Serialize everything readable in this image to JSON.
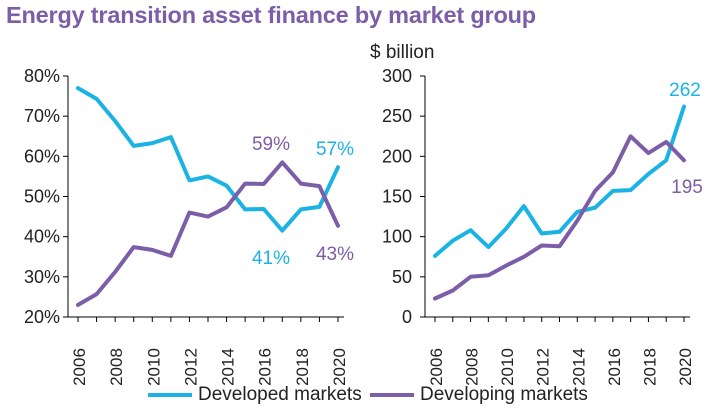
{
  "title": "Energy transition asset finance by market group",
  "colors": {
    "developed": "#1ab3e4",
    "developing": "#7b5ea7",
    "title": "#7b5ea7",
    "axis": "#000000",
    "text": "#222222"
  },
  "legend": [
    {
      "name": "Developed markets",
      "color": "#1ab3e4"
    },
    {
      "name": "Developing markets",
      "color": "#7b5ea7"
    }
  ],
  "chart_data": [
    {
      "type": "line",
      "title": "",
      "xlabel": "",
      "ylabel": "",
      "x": [
        2006,
        2007,
        2008,
        2009,
        2010,
        2011,
        2012,
        2013,
        2014,
        2015,
        2016,
        2017,
        2018,
        2019,
        2020
      ],
      "xticks": [
        "2006",
        "2008",
        "2010",
        "2012",
        "2014",
        "2016",
        "2018",
        "2020"
      ],
      "yticks": [
        "80%",
        "70%",
        "60%",
        "50%",
        "40%",
        "30%",
        "20%"
      ],
      "ylim": [
        20,
        80
      ],
      "grid": false,
      "series": [
        {
          "name": "Developed markets",
          "color": "#1ab3e4",
          "values": [
            77,
            74.3,
            68.8,
            62.6,
            63.3,
            64.8,
            54,
            55,
            52.7,
            46.8,
            46.9,
            41.5,
            46.8,
            47.4,
            57.3
          ]
        },
        {
          "name": "Developing markets",
          "color": "#7b5ea7",
          "values": [
            23,
            25.7,
            31.2,
            37.4,
            36.7,
            35.2,
            46,
            45,
            47.3,
            53.2,
            53.1,
            58.5,
            53.2,
            52.6,
            42.7
          ]
        }
      ],
      "annotations": [
        {
          "text": "59%",
          "color": "#7b5ea7"
        },
        {
          "text": "57%",
          "color": "#1ab3e4"
        },
        {
          "text": "41%",
          "color": "#1ab3e4"
        },
        {
          "text": "43%",
          "color": "#7b5ea7"
        }
      ]
    },
    {
      "type": "line",
      "title": "",
      "xlabel": "",
      "ylabel": "$ billion",
      "x": [
        2006,
        2007,
        2008,
        2009,
        2010,
        2011,
        2012,
        2013,
        2014,
        2015,
        2016,
        2017,
        2018,
        2019,
        2020
      ],
      "xticks": [
        "2006",
        "2008",
        "2010",
        "2012",
        "2014",
        "2016",
        "2018",
        "2020"
      ],
      "yticks": [
        "300",
        "250",
        "200",
        "150",
        "100",
        "50",
        "0"
      ],
      "ylim": [
        0,
        300
      ],
      "grid": false,
      "series": [
        {
          "name": "Developed markets",
          "color": "#1ab3e4",
          "values": [
            76,
            95,
            108,
            87,
            110,
            138,
            104,
            106,
            131,
            136,
            157,
            158,
            178,
            195,
            262
          ]
        },
        {
          "name": "Developing markets",
          "color": "#7b5ea7",
          "values": [
            23,
            33,
            50,
            52,
            64,
            75,
            89,
            88,
            120,
            157,
            180,
            225,
            204,
            218,
            195
          ]
        }
      ],
      "annotations": [
        {
          "text": "262",
          "color": "#1ab3e4"
        },
        {
          "text": "195",
          "color": "#7b5ea7"
        }
      ]
    }
  ]
}
